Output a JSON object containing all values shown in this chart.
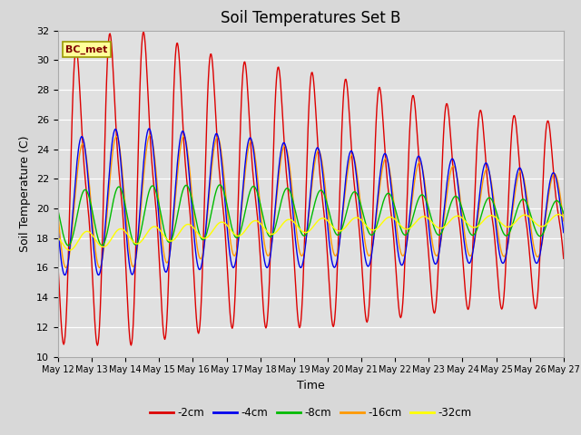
{
  "title": "Soil Temperatures Set B",
  "xlabel": "Time",
  "ylabel": "Soil Temperature (C)",
  "ylim": [
    10,
    32
  ],
  "annotation": "BC_met",
  "x_tick_labels": [
    "May 12",
    "May 13",
    "May 14",
    "May 15",
    "May 16",
    "May 17",
    "May 18",
    "May 19",
    "May 20",
    "May 21",
    "May 22",
    "May 23",
    "May 24",
    "May 25",
    "May 26",
    "May 27"
  ],
  "colors": {
    "-2cm": "#dd0000",
    "-4cm": "#0000ee",
    "-8cm": "#00bb00",
    "-16cm": "#ff9900",
    "-32cm": "#ffff00"
  },
  "depths": [
    "-2cm",
    "-4cm",
    "-8cm",
    "-16cm",
    "-32cm"
  ],
  "fig_bg_color": "#d8d8d8",
  "plot_bg_color": "#e0e0e0",
  "title_fontsize": 12,
  "label_fontsize": 9,
  "tick_fontsize": 8
}
